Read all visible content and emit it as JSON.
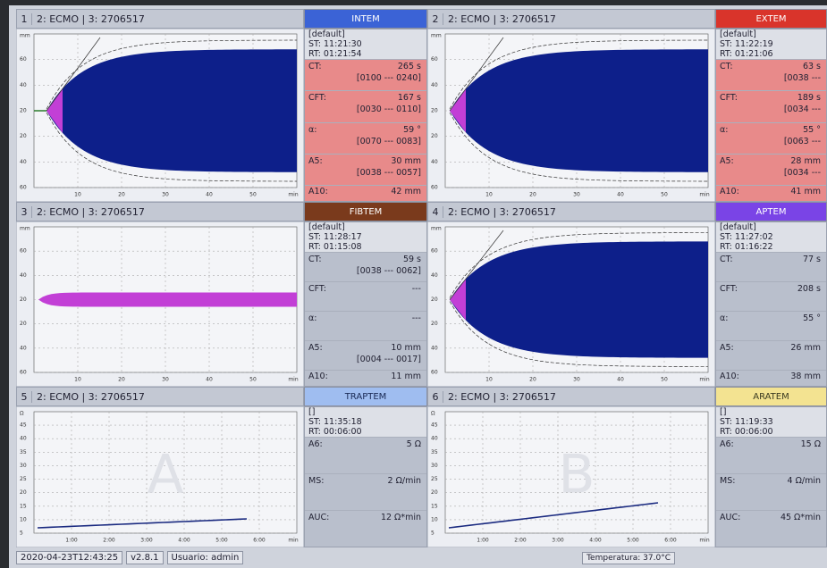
{
  "panels": [
    {
      "number": "1",
      "sample": "2: ECMO | 3: 2706517",
      "test": {
        "name": "INTEM",
        "color": "#3b63d6",
        "text_color": "#ffffff"
      },
      "curve": "clot",
      "info": [
        "[default]",
        "ST: 11:21:30",
        "RT: 01:21:54"
      ],
      "rows": [
        {
          "label": "CT:",
          "value": "265 s",
          "range": "[0100 --- 0240]",
          "alert": true
        },
        {
          "label": "CFT:",
          "value": "167 s",
          "range": "[0030 --- 0110]",
          "alert": true
        },
        {
          "label": "α:",
          "value": "59 °",
          "range": "[0070 --- 0083]",
          "alert": true
        },
        {
          "label": "A5:",
          "value": "30 mm",
          "range": "[0038 --- 0057]",
          "alert": true
        },
        {
          "label": "A10:",
          "value": "42 mm",
          "alert": true
        }
      ],
      "x_labels": [
        "10",
        "20",
        "30",
        "40",
        "50",
        "min"
      ],
      "y_labels": [
        "mm",
        "60",
        "40",
        "20",
        "20",
        "40",
        "60"
      ]
    },
    {
      "number": "2",
      "sample": "2: ECMO | 3: 2706517",
      "test": {
        "name": "EXTEM",
        "color": "#d9342b",
        "text_color": "#ffffff"
      },
      "curve": "clot",
      "info": [
        "[default]",
        "ST: 11:22:19",
        "RT: 01:21:06"
      ],
      "rows": [
        {
          "label": "CT:",
          "value": "63 s",
          "range": "[0038 ---",
          "alert": true
        },
        {
          "label": "CFT:",
          "value": "189 s",
          "range": "[0034 ---",
          "alert": true
        },
        {
          "label": "α:",
          "value": "55 °",
          "range": "[0063 ---",
          "alert": true
        },
        {
          "label": "A5:",
          "value": "28 mm",
          "range": "[0034 ---",
          "alert": true
        },
        {
          "label": "A10:",
          "value": "41 mm",
          "alert": true
        }
      ],
      "x_labels": [
        "10",
        "20",
        "30",
        "40",
        "50",
        "min"
      ],
      "y_labels": [
        "mm",
        "60",
        "40",
        "20",
        "20",
        "40",
        "60"
      ]
    },
    {
      "number": "3",
      "sample": "2: ECMO | 3: 2706517",
      "test": {
        "name": "FIBTEM",
        "color": "#7a3a1c",
        "text_color": "#ffffff"
      },
      "curve": "flat",
      "info": [
        "[default]",
        "ST: 11:28:17",
        "RT: 01:15:08"
      ],
      "rows": [
        {
          "label": "CT:",
          "value": "59 s",
          "range": "[0038 --- 0062]",
          "alert": false
        },
        {
          "label": "CFT:",
          "value": "---",
          "alert": false
        },
        {
          "label": "α:",
          "value": "---",
          "alert": false
        },
        {
          "label": "A5:",
          "value": "10 mm",
          "range": "[0004 --- 0017]",
          "alert": false
        },
        {
          "label": "A10:",
          "value": "11 mm",
          "alert": false
        }
      ],
      "x_labels": [
        "10",
        "20",
        "30",
        "40",
        "50",
        "min"
      ],
      "y_labels": [
        "mm",
        "60",
        "40",
        "20",
        "20",
        "40",
        "60"
      ]
    },
    {
      "number": "4",
      "sample": "2: ECMO | 3: 2706517",
      "test": {
        "name": "APTEM",
        "color": "#7a44e6",
        "text_color": "#ffffff"
      },
      "curve": "clot",
      "info": [
        "[default]",
        "ST: 11:27:02",
        "RT: 01:16:22"
      ],
      "rows": [
        {
          "label": "CT:",
          "value": "77 s",
          "alert": false
        },
        {
          "label": "CFT:",
          "value": "208 s",
          "alert": false
        },
        {
          "label": "α:",
          "value": "55 °",
          "alert": false
        },
        {
          "label": "A5:",
          "value": "26 mm",
          "alert": false
        },
        {
          "label": "A10:",
          "value": "38 mm",
          "alert": false
        }
      ],
      "x_labels": [
        "10",
        "20",
        "30",
        "40",
        "50",
        "min"
      ],
      "y_labels": [
        "mm",
        "60",
        "40",
        "20",
        "20",
        "40",
        "60"
      ]
    },
    {
      "number": "5",
      "sample": "2: ECMO | 3: 2706517",
      "test": {
        "name": "TRAPTEM",
        "color": "#9fbdf0",
        "text_color": "#1a2a55"
      },
      "curve": "impedance",
      "watermark": "A",
      "info": [
        "[]",
        "ST: 11:35:18",
        "RT: 00:06:00"
      ],
      "rows": [
        {
          "label": "A6:",
          "value": "5 Ω",
          "alert": false
        },
        {
          "label": "MS:",
          "value": "2 Ω/min",
          "alert": false
        },
        {
          "label": "AUC:",
          "value": "12 Ω*min",
          "alert": false
        }
      ],
      "x_labels": [
        "1:00",
        "2:00",
        "3:00",
        "4:00",
        "5:00",
        "6:00",
        "min"
      ],
      "y_labels": [
        "Ω",
        "45",
        "40",
        "35",
        "30",
        "25",
        "20",
        "15",
        "10",
        "5"
      ]
    },
    {
      "number": "6",
      "sample": "2: ECMO | 3: 2706517",
      "test": {
        "name": "ARATEM",
        "color": "#f3e391",
        "text_color": "#3a3a20"
      },
      "curve": "impedance",
      "watermark": "B",
      "info": [
        "[]",
        "ST: 11:19:33",
        "RT: 00:06:00"
      ],
      "rows": [
        {
          "label": "A6:",
          "value": "15 Ω",
          "alert": false
        },
        {
          "label": "MS:",
          "value": "4 Ω/min",
          "alert": false
        },
        {
          "label": "AUC:",
          "value": "45 Ω*min",
          "alert": false
        }
      ],
      "x_labels": [
        "1:00",
        "2:00",
        "3:00",
        "4:00",
        "5:00",
        "6:00",
        "min"
      ],
      "y_labels": [
        "Ω",
        "45",
        "40",
        "35",
        "30",
        "25",
        "20",
        "15",
        "10",
        "5"
      ]
    }
  ],
  "footer": {
    "timestamp": "2020-04-23T12:43:25",
    "version": "v2.8.1",
    "user": "Usuario: admin",
    "temperature": "Temperatura: 37.0°C"
  }
}
